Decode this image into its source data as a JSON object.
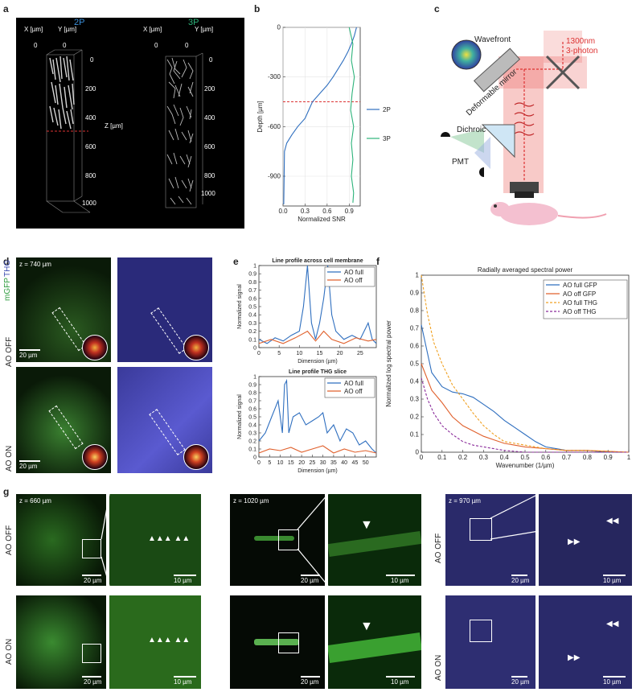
{
  "panels": {
    "a": "a",
    "b": "b",
    "c": "c",
    "d": "d",
    "e": "e",
    "f": "f",
    "g": "g"
  },
  "a": {
    "label_2p": "2P",
    "label_3p": "3P",
    "x_um": "X [µm]",
    "y_um": "Y [µm]",
    "z_um": "Z [µm]",
    "zero": "0",
    "ticks_2p": [
      "0",
      "200",
      "400",
      "600",
      "800",
      "1000"
    ],
    "ticks_3p": [
      "0",
      "200",
      "400",
      "600",
      "800",
      "1000"
    ],
    "color_2p": "#3a8fd9",
    "color_3p": "#2db37a"
  },
  "chart_data": [
    {
      "type": "line",
      "panel": "b",
      "xlabel": "Normalized SNR",
      "ylabel": "Depth [µm]",
      "xticks": [
        "0.0",
        "0.3",
        "0.6",
        "0.9"
      ],
      "yticks": [
        "0",
        "-300",
        "-600",
        "-900"
      ],
      "xlim": [
        0,
        1.05
      ],
      "ylim": [
        -1080,
        0
      ],
      "reference_line_depth": -450,
      "series": [
        {
          "name": "2P",
          "color": "#2f6fbf",
          "points": [
            [
              1.0,
              0
            ],
            [
              0.97,
              -50
            ],
            [
              0.93,
              -100
            ],
            [
              0.88,
              -150
            ],
            [
              0.82,
              -200
            ],
            [
              0.75,
              -250
            ],
            [
              0.68,
              -300
            ],
            [
              0.6,
              -350
            ],
            [
              0.5,
              -400
            ],
            [
              0.4,
              -450
            ],
            [
              0.3,
              -550
            ],
            [
              0.2,
              -600
            ],
            [
              0.12,
              -650
            ],
            [
              0.05,
              -700
            ],
            [
              0.02,
              -750
            ],
            [
              0.01,
              -1070
            ]
          ]
        },
        {
          "name": "3P",
          "color": "#2db37a",
          "points": [
            [
              0.9,
              0
            ],
            [
              0.95,
              -100
            ],
            [
              0.93,
              -200
            ],
            [
              0.97,
              -300
            ],
            [
              0.94,
              -400
            ],
            [
              0.92,
              -500
            ],
            [
              0.96,
              -600
            ],
            [
              0.93,
              -700
            ],
            [
              0.95,
              -800
            ],
            [
              0.93,
              -900
            ],
            [
              0.96,
              -1000
            ],
            [
              0.95,
              -1060
            ]
          ]
        }
      ]
    },
    {
      "type": "line",
      "panel": "e-top",
      "title": "Line profile across cell membrane",
      "xlabel": "Dimension (µm)",
      "ylabel": "Normalized signal",
      "xticks": [
        "0",
        "5",
        "10",
        "15",
        "20",
        "25"
      ],
      "yticks": [
        "0",
        "0.1",
        "0.2",
        "0.3",
        "0.4",
        "0.5",
        "0.6",
        "0.7",
        "0.8",
        "0.9",
        "1"
      ],
      "xlim": [
        0,
        29
      ],
      "ylim": [
        0,
        1
      ],
      "series": [
        {
          "name": "AO full",
          "color": "#2f6fbf",
          "points": [
            [
              0,
              0.1
            ],
            [
              2,
              0.05
            ],
            [
              4,
              0.12
            ],
            [
              6,
              0.08
            ],
            [
              8,
              0.15
            ],
            [
              10,
              0.2
            ],
            [
              11,
              0.5
            ],
            [
              12,
              1.0
            ],
            [
              13,
              0.3
            ],
            [
              14,
              0.1
            ],
            [
              15,
              0.3
            ],
            [
              16,
              0.6
            ],
            [
              17,
              1.0
            ],
            [
              18,
              0.4
            ],
            [
              19,
              0.2
            ],
            [
              21,
              0.1
            ],
            [
              23,
              0.15
            ],
            [
              25,
              0.1
            ],
            [
              27,
              0.3
            ],
            [
              28,
              0.1
            ],
            [
              29,
              0.05
            ]
          ]
        },
        {
          "name": "AO off",
          "color": "#e0602c",
          "points": [
            [
              0,
              0.05
            ],
            [
              3,
              0.1
            ],
            [
              6,
              0.05
            ],
            [
              9,
              0.12
            ],
            [
              12,
              0.2
            ],
            [
              14,
              0.08
            ],
            [
              16,
              0.2
            ],
            [
              18,
              0.1
            ],
            [
              21,
              0.05
            ],
            [
              24,
              0.12
            ],
            [
              27,
              0.08
            ],
            [
              29,
              0.1
            ]
          ]
        }
      ]
    },
    {
      "type": "line",
      "panel": "e-bottom",
      "title": "Line profile THG slice",
      "xlabel": "Dimension (µm)",
      "ylabel": "Normalized signal",
      "xticks": [
        "0",
        "5",
        "10",
        "15",
        "20",
        "25",
        "30",
        "35",
        "40",
        "45",
        "50"
      ],
      "yticks": [
        "0",
        "0.1",
        "0.2",
        "0.3",
        "0.4",
        "0.5",
        "0.6",
        "0.7",
        "0.8",
        "0.9",
        "1"
      ],
      "xlim": [
        0,
        55
      ],
      "ylim": [
        0,
        1
      ],
      "series": [
        {
          "name": "AO full",
          "color": "#2f6fbf",
          "points": [
            [
              0,
              0.2
            ],
            [
              3,
              0.3
            ],
            [
              6,
              0.5
            ],
            [
              9,
              0.7
            ],
            [
              11,
              0.3
            ],
            [
              12,
              0.9
            ],
            [
              13,
              0.95
            ],
            [
              14,
              0.3
            ],
            [
              16,
              0.5
            ],
            [
              19,
              0.55
            ],
            [
              22,
              0.4
            ],
            [
              25,
              0.45
            ],
            [
              28,
              0.5
            ],
            [
              30,
              0.55
            ],
            [
              32,
              0.3
            ],
            [
              35,
              0.4
            ],
            [
              38,
              0.2
            ],
            [
              41,
              0.35
            ],
            [
              44,
              0.3
            ],
            [
              47,
              0.15
            ],
            [
              50,
              0.2
            ],
            [
              53,
              0.1
            ],
            [
              55,
              0.05
            ]
          ]
        },
        {
          "name": "AO off",
          "color": "#e0602c",
          "points": [
            [
              0,
              0.05
            ],
            [
              5,
              0.1
            ],
            [
              10,
              0.08
            ],
            [
              15,
              0.12
            ],
            [
              20,
              0.06
            ],
            [
              25,
              0.1
            ],
            [
              30,
              0.14
            ],
            [
              35,
              0.05
            ],
            [
              40,
              0.1
            ],
            [
              45,
              0.06
            ],
            [
              50,
              0.08
            ],
            [
              55,
              0.05
            ]
          ]
        }
      ]
    },
    {
      "type": "line",
      "panel": "f",
      "title": "Radially averaged spectral power",
      "xlabel": "Wavenumber (1/µm)",
      "ylabel": "Normalized log spectral power",
      "xticks": [
        "0",
        "0.1",
        "0.2",
        "0.3",
        "0.4",
        "0.5",
        "0.6",
        "0.7",
        "0.8",
        "0.9",
        "1"
      ],
      "yticks": [
        "0",
        "0.1",
        "0.2",
        "0.3",
        "0.4",
        "0.5",
        "0.6",
        "0.7",
        "0.8",
        "0.9",
        "1"
      ],
      "xlim": [
        0,
        1
      ],
      "ylim": [
        0,
        1
      ],
      "series": [
        {
          "name": "AO full GFP",
          "color": "#2f6fbf",
          "dash": false,
          "points": [
            [
              0,
              0.72
            ],
            [
              0.05,
              0.45
            ],
            [
              0.1,
              0.37
            ],
            [
              0.15,
              0.34
            ],
            [
              0.2,
              0.33
            ],
            [
              0.25,
              0.31
            ],
            [
              0.3,
              0.27
            ],
            [
              0.35,
              0.23
            ],
            [
              0.4,
              0.18
            ],
            [
              0.45,
              0.14
            ],
            [
              0.5,
              0.1
            ],
            [
              0.55,
              0.06
            ],
            [
              0.6,
              0.03
            ],
            [
              0.65,
              0.02
            ],
            [
              0.7,
              0.01
            ],
            [
              0.8,
              0.01
            ],
            [
              0.9,
              0.0
            ],
            [
              1.0,
              0.0
            ]
          ]
        },
        {
          "name": "AO off GFP",
          "color": "#e0602c",
          "dash": false,
          "points": [
            [
              0,
              0.5
            ],
            [
              0.05,
              0.35
            ],
            [
              0.1,
              0.28
            ],
            [
              0.15,
              0.2
            ],
            [
              0.2,
              0.15
            ],
            [
              0.25,
              0.12
            ],
            [
              0.3,
              0.09
            ],
            [
              0.35,
              0.07
            ],
            [
              0.4,
              0.05
            ],
            [
              0.5,
              0.03
            ],
            [
              0.6,
              0.02
            ],
            [
              0.7,
              0.01
            ],
            [
              0.8,
              0.01
            ],
            [
              1.0,
              0.0
            ]
          ]
        },
        {
          "name": "AO full THG",
          "color": "#f0a020",
          "dash": true,
          "points": [
            [
              0,
              1.0
            ],
            [
              0.03,
              0.78
            ],
            [
              0.06,
              0.62
            ],
            [
              0.1,
              0.5
            ],
            [
              0.15,
              0.38
            ],
            [
              0.2,
              0.3
            ],
            [
              0.25,
              0.22
            ],
            [
              0.3,
              0.15
            ],
            [
              0.35,
              0.1
            ],
            [
              0.4,
              0.06
            ],
            [
              0.5,
              0.04
            ],
            [
              0.6,
              0.02
            ],
            [
              0.7,
              0.01
            ],
            [
              0.8,
              0.01
            ],
            [
              1.0,
              0.0
            ]
          ]
        },
        {
          "name": "AO off THG",
          "color": "#8a2a9a",
          "dash": true,
          "points": [
            [
              0,
              0.42
            ],
            [
              0.03,
              0.3
            ],
            [
              0.06,
              0.22
            ],
            [
              0.1,
              0.15
            ],
            [
              0.15,
              0.1
            ],
            [
              0.2,
              0.06
            ],
            [
              0.25,
              0.04
            ],
            [
              0.3,
              0.03
            ],
            [
              0.35,
              0.02
            ],
            [
              0.4,
              0.01
            ],
            [
              0.5,
              0.0
            ],
            [
              1.0,
              0.0
            ]
          ]
        }
      ]
    }
  ],
  "c": {
    "wavefront": "Wavefront",
    "laser": "1300nm",
    "laser2": "3-photon",
    "mirror": "Deformable mirror",
    "dichroic": "Dichroic",
    "pmt": "PMT",
    "laser_color": "#e8504a"
  },
  "d": {
    "z": "z = 740 µm",
    "mgfp": "mGFP",
    "thg": "THG",
    "ao_off": "AO OFF",
    "ao_on": "AO ON",
    "scale": "20 µm"
  },
  "g": {
    "z1": "z = 660 µm",
    "z2": "z = 1020 µm",
    "z3": "z = 970 µm",
    "ao_off": "AO OFF",
    "ao_on": "AO ON",
    "s20": "20 µm",
    "s10": "10 µm"
  }
}
